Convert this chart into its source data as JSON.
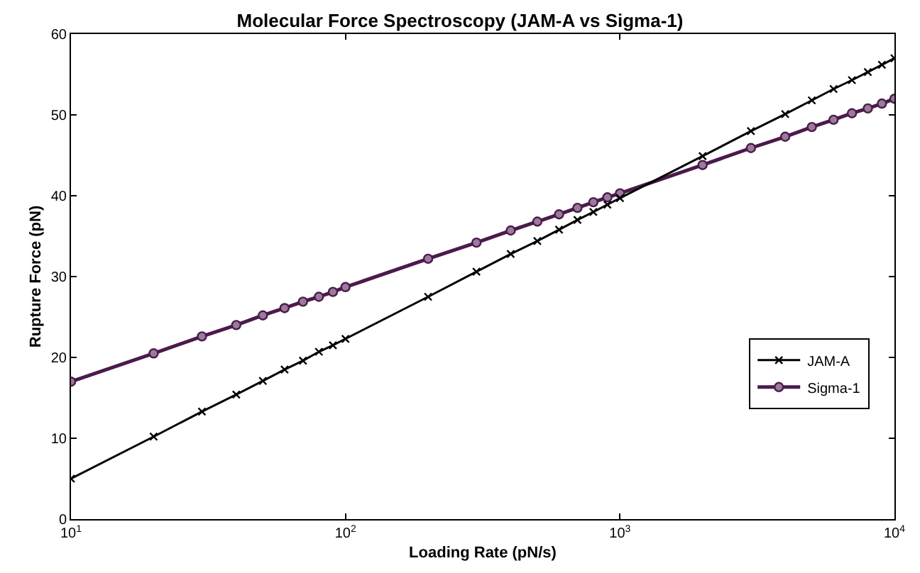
{
  "chart_data": {
    "type": "line",
    "title": "Molecular Force Spectroscopy (JAM-A vs Sigma-1)",
    "xlabel": "Loading Rate (pN/s)",
    "ylabel": "Rupture Force (pN)",
    "x": [
      10,
      20,
      30,
      40,
      50,
      60,
      70,
      80,
      90,
      100,
      200,
      300,
      400,
      500,
      600,
      700,
      800,
      900,
      1000,
      2000,
      3000,
      4000,
      5000,
      6000,
      7000,
      8000,
      9000,
      10000
    ],
    "series": [
      {
        "name": "JAM-A",
        "color": "#000000",
        "marker": "cross",
        "values": [
          5,
          10.2,
          13.3,
          15.4,
          17.1,
          18.5,
          19.6,
          20.7,
          21.5,
          22.3,
          27.5,
          30.6,
          32.8,
          34.4,
          35.8,
          37.0,
          38.0,
          38.9,
          39.7,
          44.9,
          48.0,
          50.1,
          51.8,
          53.2,
          54.3,
          55.3,
          56.2,
          57.0
        ]
      },
      {
        "name": "Sigma-1",
        "color": "#4b1a4b",
        "marker": "circle",
        "values": [
          17,
          20.5,
          22.6,
          24.0,
          25.2,
          26.1,
          26.9,
          27.5,
          28.1,
          28.7,
          32.2,
          34.2,
          35.7,
          36.8,
          37.7,
          38.5,
          39.2,
          39.8,
          40.3,
          43.8,
          45.9,
          47.3,
          48.5,
          49.4,
          50.2,
          50.8,
          51.4,
          52.0
        ]
      }
    ],
    "log": "x",
    "xlim": [
      10,
      10000
    ],
    "xticks": [
      {
        "value": 10,
        "label": "10$^{1}$"
      },
      {
        "value": 100,
        "label": "10$^{2}$"
      },
      {
        "value": 1000,
        "label": "10$^{3}$"
      },
      {
        "value": 10000,
        "label": "10$^{4}$"
      }
    ],
    "ylim": [
      0,
      60
    ],
    "yticks": [
      0,
      10,
      20,
      30,
      40,
      50,
      60
    ],
    "grid": false,
    "legend": "right",
    "line_style": "solid"
  }
}
